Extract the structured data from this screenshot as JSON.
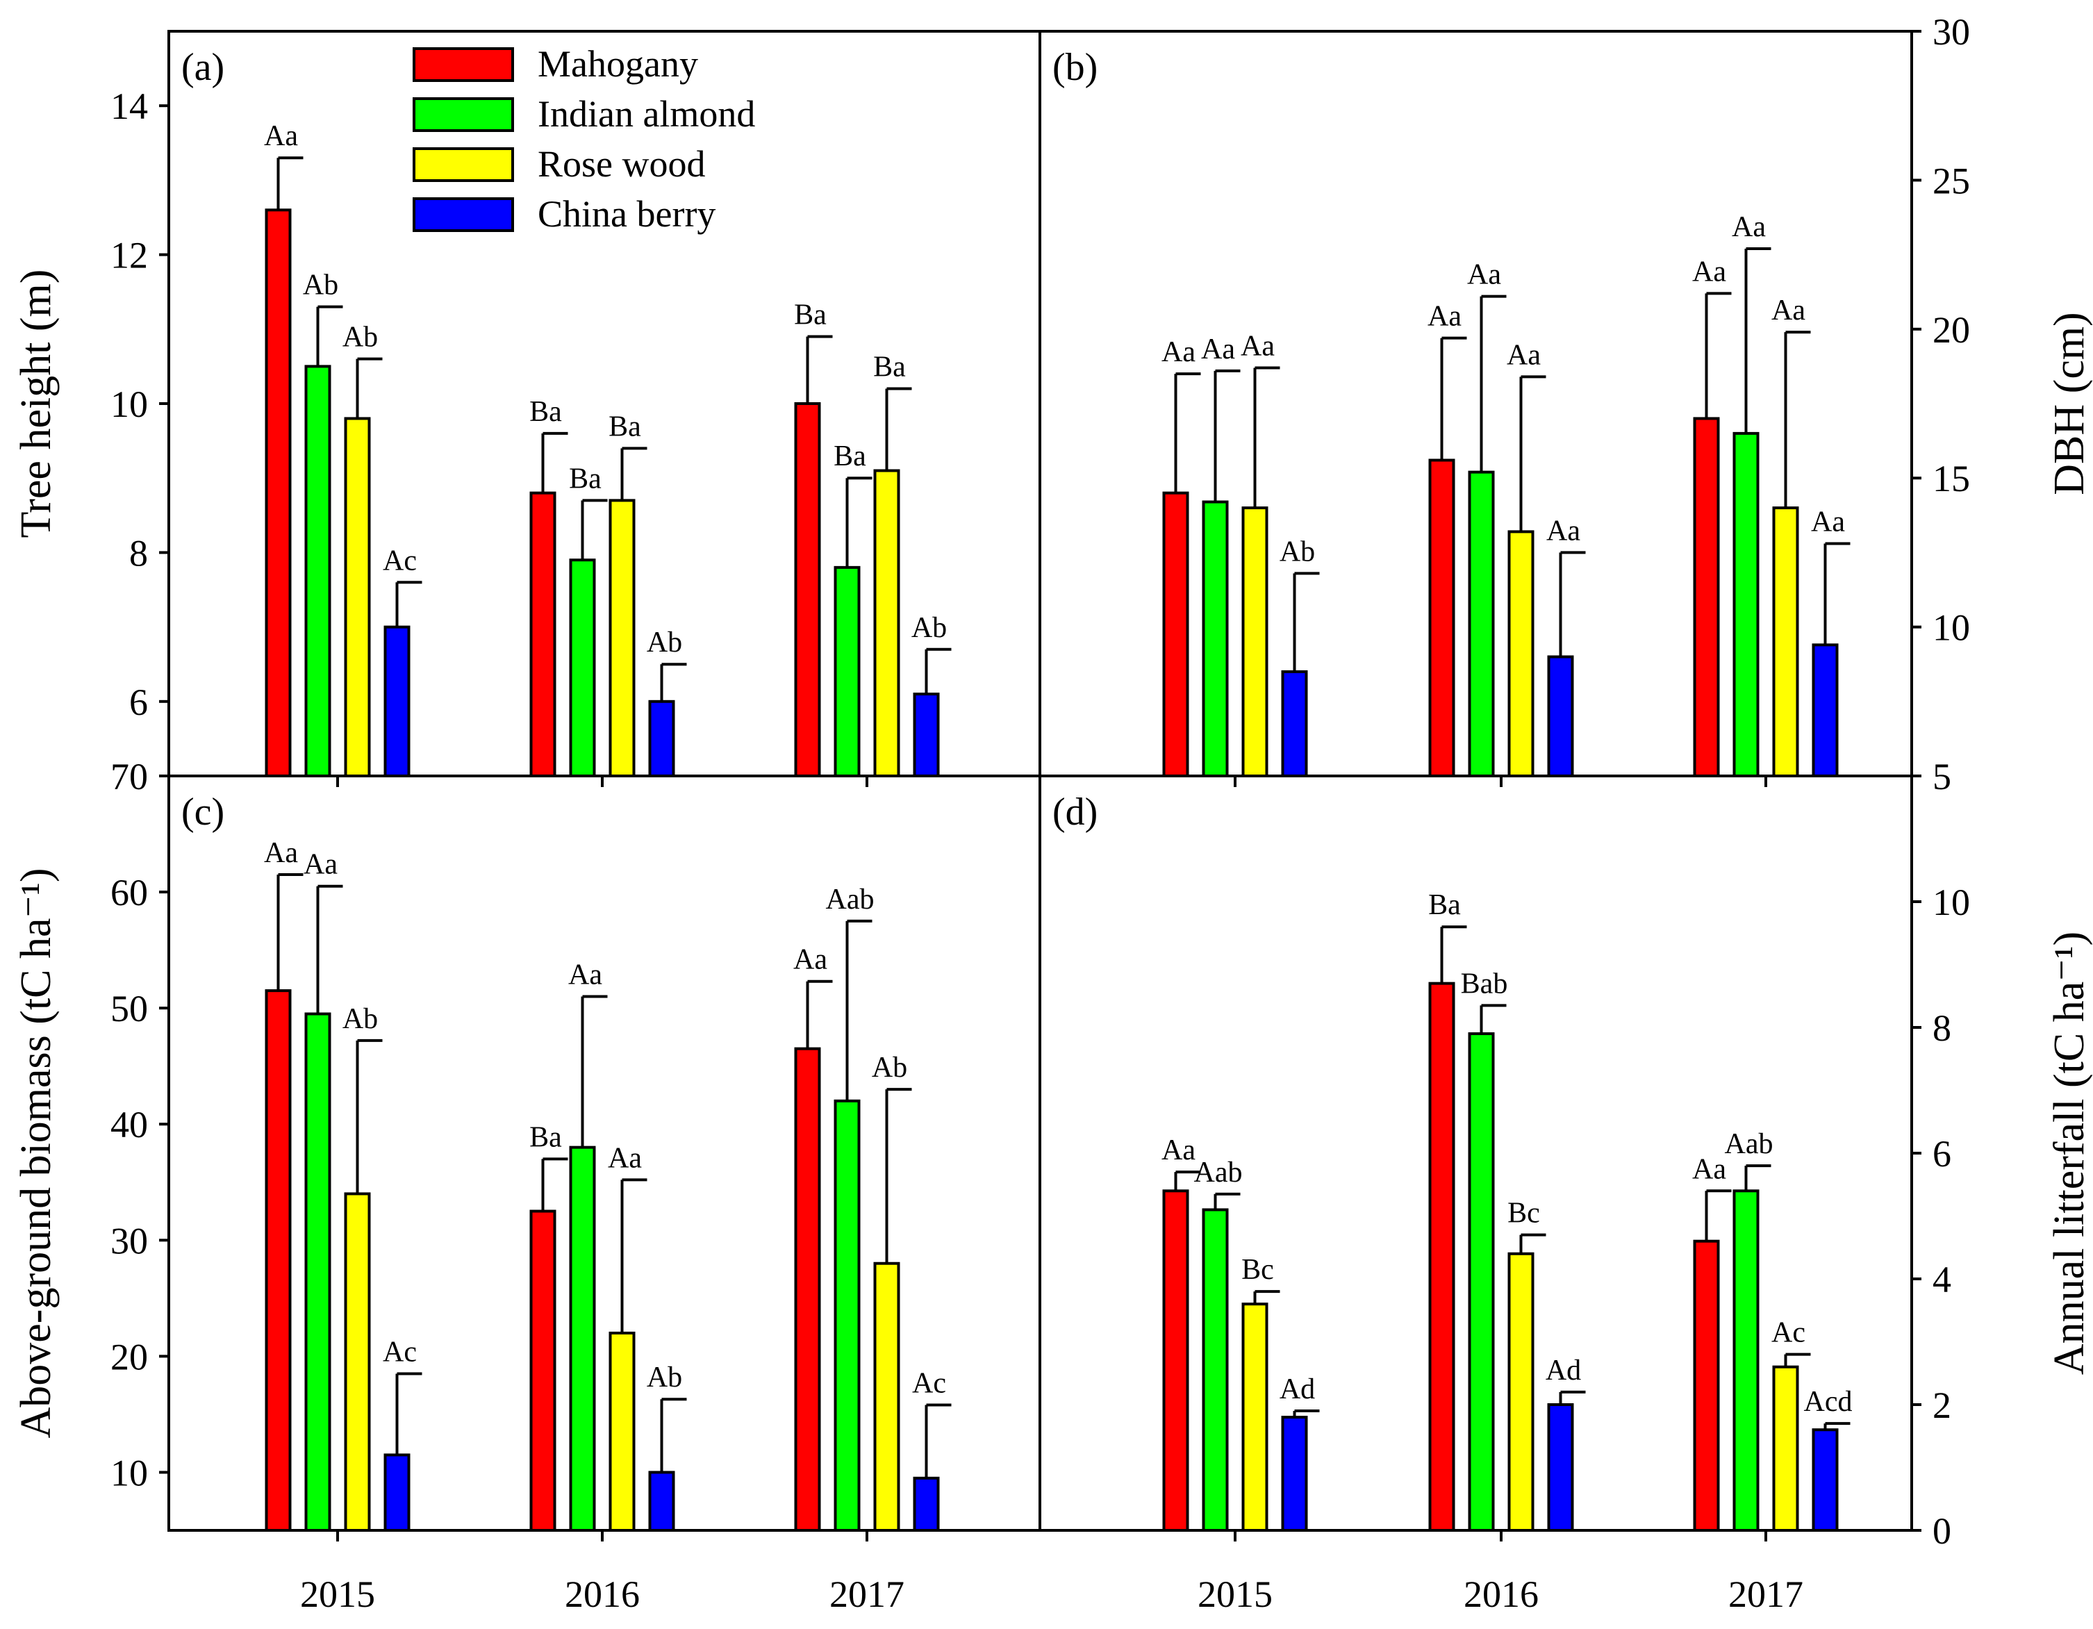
{
  "legend": [
    {
      "name": "Mahogany",
      "color": "#ff0000"
    },
    {
      "name": "Indian almond",
      "color": "#00ff00"
    },
    {
      "name": "Rose wood",
      "color": "#ffff00"
    },
    {
      "name": "China berry",
      "color": "#0000ff"
    }
  ],
  "chart_data": [
    {
      "type": "bar",
      "panel": "(a)",
      "ylabel": "Tree height (m)",
      "ylabel_side": "left",
      "ylim": [
        5,
        15
      ],
      "yticks": [
        6,
        8,
        10,
        12,
        14
      ],
      "categories": [
        "2015",
        "2016",
        "2017"
      ],
      "series": [
        {
          "name": "Mahogany",
          "values": [
            12.6,
            8.8,
            10.0
          ],
          "errors": [
            0.7,
            0.8,
            0.9
          ],
          "labels": [
            "Aa",
            "Ba",
            "Ba"
          ]
        },
        {
          "name": "Indian almond",
          "values": [
            10.5,
            7.9,
            7.8
          ],
          "errors": [
            0.8,
            0.8,
            1.2
          ],
          "labels": [
            "Ab",
            "Ba",
            "Ba"
          ]
        },
        {
          "name": "Rose wood",
          "values": [
            9.8,
            8.7,
            9.1
          ],
          "errors": [
            0.8,
            0.7,
            1.1
          ],
          "labels": [
            "Ab",
            "Ba",
            "Ba"
          ]
        },
        {
          "name": "China berry",
          "values": [
            7.0,
            6.0,
            6.1
          ],
          "errors": [
            0.6,
            0.5,
            0.6
          ],
          "labels": [
            "Ac",
            "Ab",
            "Ab"
          ]
        }
      ]
    },
    {
      "type": "bar",
      "panel": "(b)",
      "ylabel": "DBH (cm)",
      "ylabel_side": "right",
      "ylim": [
        5,
        30
      ],
      "yticks": [
        5,
        10,
        15,
        20,
        25,
        30
      ],
      "categories": [
        "2015",
        "2016",
        "2017"
      ],
      "series": [
        {
          "name": "Mahogany",
          "values": [
            14.5,
            15.6,
            17.0
          ],
          "errors": [
            4.0,
            4.1,
            4.2
          ],
          "labels": [
            "Aa",
            "Aa",
            "Aa"
          ]
        },
        {
          "name": "Indian almond",
          "values": [
            14.2,
            15.2,
            16.5
          ],
          "errors": [
            4.4,
            5.9,
            6.2
          ],
          "labels": [
            "Aa",
            "Aa",
            "Aa"
          ]
        },
        {
          "name": "Rose wood",
          "values": [
            14.0,
            13.2,
            14.0
          ],
          "errors": [
            4.7,
            5.2,
            5.9
          ],
          "labels": [
            "Aa",
            "Aa",
            "Aa"
          ]
        },
        {
          "name": "China berry",
          "values": [
            8.5,
            9.0,
            9.4
          ],
          "errors": [
            3.3,
            3.5,
            3.4
          ],
          "labels": [
            "Ab",
            "Aa",
            "Aa"
          ]
        }
      ]
    },
    {
      "type": "bar",
      "panel": "(c)",
      "ylabel": "Above-ground biomass (tC ha⁻¹)",
      "ylabel_side": "left",
      "ylim": [
        5,
        70
      ],
      "yticks": [
        10,
        20,
        30,
        40,
        50,
        60,
        70
      ],
      "categories": [
        "2015",
        "2016",
        "2017"
      ],
      "xlabels": [
        "2015",
        "2016",
        "2017"
      ],
      "series": [
        {
          "name": "Mahogany",
          "values": [
            51.5,
            32.5,
            46.5
          ],
          "errors": [
            10.0,
            4.5,
            5.8
          ],
          "labels": [
            "Aa",
            "Ba",
            "Aa"
          ]
        },
        {
          "name": "Indian almond",
          "values": [
            49.5,
            38.0,
            42.0
          ],
          "errors": [
            11.0,
            13.0,
            15.5
          ],
          "labels": [
            "Aa",
            "Aa",
            "Aab"
          ]
        },
        {
          "name": "Rose wood",
          "values": [
            34.0,
            22.0,
            28.0
          ],
          "errors": [
            13.2,
            13.2,
            15.0
          ],
          "labels": [
            "Ab",
            "Aa",
            "Ab"
          ]
        },
        {
          "name": "China berry",
          "values": [
            11.5,
            10.0,
            9.5
          ],
          "errors": [
            7.0,
            6.3,
            6.3
          ],
          "labels": [
            "Ac",
            "Ab",
            "Ac"
          ]
        }
      ]
    },
    {
      "type": "bar",
      "panel": "(d)",
      "ylabel": "Annual litterfall (tC ha⁻¹)",
      "ylabel_side": "right",
      "ylim": [
        0,
        12
      ],
      "yticks": [
        0,
        2,
        4,
        6,
        8,
        10
      ],
      "categories": [
        "2015",
        "2016",
        "2017"
      ],
      "xlabels": [
        "2015",
        "2016",
        "2017"
      ],
      "series": [
        {
          "name": "Mahogany",
          "values": [
            5.4,
            8.7,
            4.6
          ],
          "errors": [
            0.3,
            0.9,
            0.8
          ],
          "labels": [
            "Aa",
            "Ba",
            "Aa"
          ]
        },
        {
          "name": "Indian almond",
          "values": [
            5.1,
            7.9,
            5.4
          ],
          "errors": [
            0.25,
            0.45,
            0.4
          ],
          "labels": [
            "Aab",
            "Bab",
            "Aab"
          ]
        },
        {
          "name": "Rose wood",
          "values": [
            3.6,
            4.4,
            2.6
          ],
          "errors": [
            0.2,
            0.3,
            0.2
          ],
          "labels": [
            "Bc",
            "Bc",
            "Ac"
          ]
        },
        {
          "name": "China berry",
          "values": [
            1.8,
            2.0,
            1.6
          ],
          "errors": [
            0.1,
            0.2,
            0.1
          ],
          "labels": [
            "Ad",
            "Ad",
            "Acd"
          ]
        }
      ]
    }
  ]
}
